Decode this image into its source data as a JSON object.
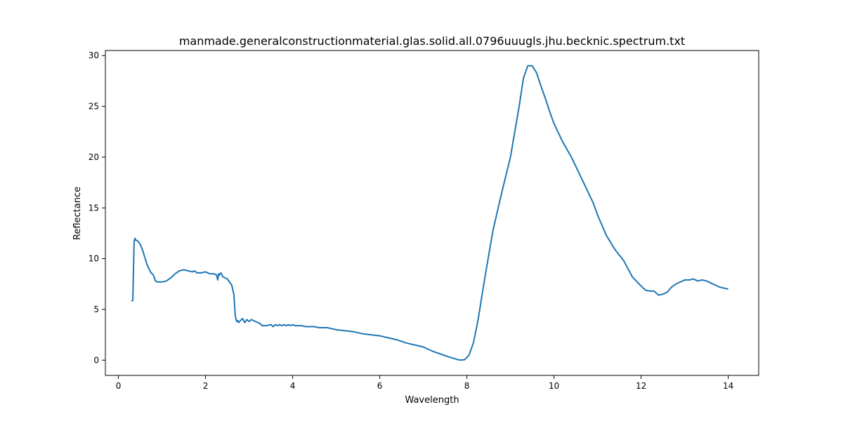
{
  "chart_data": {
    "type": "line",
    "title": "manmade.generalconstructionmaterial.glas.solid.all.0796uuugls.jhu.becknic.spectrum.txt",
    "xlabel": "Wavelength",
    "ylabel": "Reflectance",
    "xlim": [
      -0.3,
      14.7
    ],
    "ylim": [
      -1.5,
      30.5
    ],
    "xticks": [
      0,
      2,
      4,
      6,
      8,
      10,
      12,
      14
    ],
    "yticks": [
      0,
      5,
      10,
      15,
      20,
      25,
      30
    ],
    "grid": false,
    "line_color": "#1f77b4",
    "series": [
      {
        "x": [
          0.3,
          0.33,
          0.36,
          0.38,
          0.4,
          0.42,
          0.45,
          0.5,
          0.55,
          0.6,
          0.65,
          0.7,
          0.75,
          0.8,
          0.85,
          0.9,
          0.95,
          1.0,
          1.1,
          1.2,
          1.3,
          1.4,
          1.5,
          1.6,
          1.7,
          1.75,
          1.8,
          1.9,
          2.0,
          2.1,
          2.2,
          2.25,
          2.28,
          2.3,
          2.32,
          2.35,
          2.4,
          2.45,
          2.5,
          2.55,
          2.6,
          2.65,
          2.68,
          2.7,
          2.72,
          2.74,
          2.76,
          2.8,
          2.85,
          2.9,
          2.95,
          3.0,
          3.05,
          3.1,
          3.15,
          3.2,
          3.25,
          3.3,
          3.4,
          3.5,
          3.55,
          3.6,
          3.65,
          3.7,
          3.75,
          3.8,
          3.85,
          3.9,
          3.95,
          4.0,
          4.05,
          4.1,
          4.2,
          4.3,
          4.4,
          4.5,
          4.6,
          4.7,
          4.8,
          4.9,
          5.0,
          5.2,
          5.4,
          5.6,
          5.8,
          6.0,
          6.2,
          6.4,
          6.6,
          6.8,
          7.0,
          7.2,
          7.4,
          7.6,
          7.75,
          7.85,
          7.95,
          8.05,
          8.15,
          8.25,
          8.4,
          8.6,
          8.8,
          9.0,
          9.2,
          9.3,
          9.4,
          9.5,
          9.6,
          9.7,
          9.8,
          9.9,
          10.0,
          10.2,
          10.4,
          10.6,
          10.8,
          10.9,
          11.0,
          11.2,
          11.4,
          11.6,
          11.8,
          12.0,
          12.1,
          12.2,
          12.3,
          12.4,
          12.5,
          12.6,
          12.7,
          12.8,
          12.9,
          13.0,
          13.1,
          13.2,
          13.3,
          13.4,
          13.5,
          13.6,
          13.7,
          13.8,
          13.9,
          14.0
        ],
        "y": [
          5.8,
          5.9,
          11.7,
          12.0,
          11.8,
          11.8,
          11.7,
          11.4,
          10.9,
          10.2,
          9.5,
          9.0,
          8.6,
          8.4,
          7.8,
          7.7,
          7.7,
          7.7,
          7.8,
          8.1,
          8.5,
          8.8,
          8.9,
          8.8,
          8.7,
          8.8,
          8.6,
          8.6,
          8.7,
          8.5,
          8.5,
          8.4,
          7.9,
          8.5,
          8.4,
          8.6,
          8.2,
          8.1,
          8.0,
          7.7,
          7.4,
          6.5,
          4.5,
          4.0,
          3.8,
          3.9,
          3.7,
          3.9,
          4.1,
          3.7,
          4.0,
          3.8,
          4.0,
          3.9,
          3.8,
          3.7,
          3.6,
          3.4,
          3.4,
          3.5,
          3.3,
          3.5,
          3.4,
          3.5,
          3.4,
          3.5,
          3.4,
          3.5,
          3.4,
          3.5,
          3.4,
          3.4,
          3.4,
          3.3,
          3.3,
          3.3,
          3.2,
          3.2,
          3.2,
          3.1,
          3.0,
          2.9,
          2.8,
          2.6,
          2.5,
          2.4,
          2.2,
          2.0,
          1.7,
          1.5,
          1.3,
          0.9,
          0.6,
          0.3,
          0.1,
          0.0,
          0.05,
          0.5,
          1.7,
          3.8,
          7.8,
          12.8,
          16.5,
          20.0,
          25.0,
          27.8,
          29.0,
          29.0,
          28.3,
          27.0,
          25.8,
          24.5,
          23.3,
          21.5,
          20.0,
          18.2,
          16.4,
          15.5,
          14.3,
          12.3,
          10.9,
          9.8,
          8.2,
          7.3,
          6.9,
          6.8,
          6.8,
          6.4,
          6.5,
          6.7,
          7.2,
          7.5,
          7.7,
          7.9,
          7.9,
          8.0,
          7.8,
          7.9,
          7.8,
          7.6,
          7.4,
          7.2,
          7.1,
          7.0
        ]
      }
    ]
  }
}
